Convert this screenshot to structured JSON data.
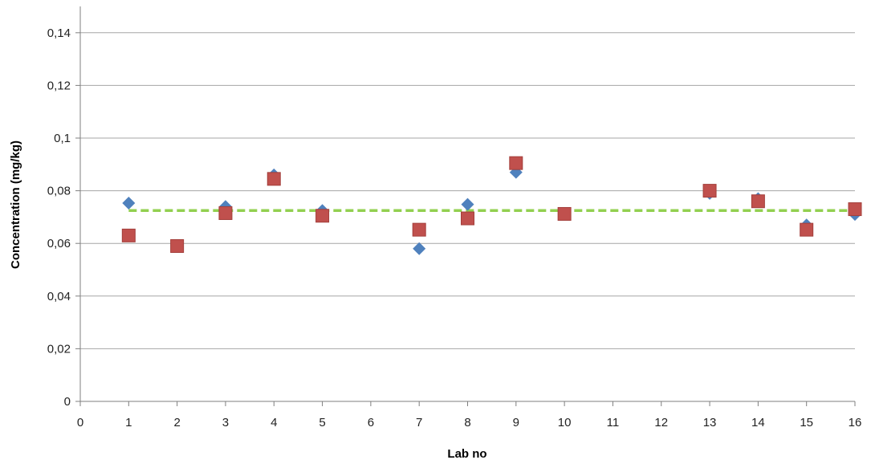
{
  "chart_data": {
    "type": "scatter",
    "title": "",
    "xlabel": "Lab no",
    "ylabel": "Concentration (mg/kg)",
    "xlim": [
      0,
      16
    ],
    "ylim": [
      0,
      0.15
    ],
    "x_ticks": [
      "0",
      "1",
      "2",
      "3",
      "4",
      "5",
      "6",
      "7",
      "8",
      "9",
      "10",
      "11",
      "12",
      "13",
      "14",
      "15",
      "16"
    ],
    "y_ticks": [
      {
        "value": 0,
        "label": "0"
      },
      {
        "value": 0.02,
        "label": "0,02"
      },
      {
        "value": 0.04,
        "label": "0,04"
      },
      {
        "value": 0.06,
        "label": "0,06"
      },
      {
        "value": 0.08,
        "label": "0,08"
      },
      {
        "value": 0.1,
        "label": "0,1"
      },
      {
        "value": 0.12,
        "label": "0,12"
      },
      {
        "value": 0.14,
        "label": "0,14"
      }
    ],
    "grid": "horizontal",
    "legend": "none",
    "reference_line": {
      "value": 0.0725,
      "color": "#92d050",
      "style": "dashed"
    },
    "series": [
      {
        "marker": "diamond",
        "color": "#4f81bd",
        "points": [
          {
            "x": 1,
            "y": 0.0753
          },
          {
            "x": 3,
            "y": 0.074
          },
          {
            "x": 4,
            "y": 0.086
          },
          {
            "x": 5,
            "y": 0.0725
          },
          {
            "x": 7,
            "y": 0.058
          },
          {
            "x": 8,
            "y": 0.0748
          },
          {
            "x": 9,
            "y": 0.087
          },
          {
            "x": 13,
            "y": 0.079
          },
          {
            "x": 14,
            "y": 0.077
          },
          {
            "x": 15,
            "y": 0.067
          },
          {
            "x": 16,
            "y": 0.071
          }
        ]
      },
      {
        "marker": "square",
        "color": "#c0504d",
        "points": [
          {
            "x": 1,
            "y": 0.063
          },
          {
            "x": 2,
            "y": 0.059
          },
          {
            "x": 3,
            "y": 0.0715
          },
          {
            "x": 4,
            "y": 0.0845
          },
          {
            "x": 5,
            "y": 0.0705
          },
          {
            "x": 7,
            "y": 0.0652
          },
          {
            "x": 8,
            "y": 0.0695
          },
          {
            "x": 9,
            "y": 0.0905
          },
          {
            "x": 10,
            "y": 0.0712
          },
          {
            "x": 13,
            "y": 0.08
          },
          {
            "x": 14,
            "y": 0.076
          },
          {
            "x": 15,
            "y": 0.0652
          },
          {
            "x": 16,
            "y": 0.073
          }
        ]
      }
    ]
  }
}
